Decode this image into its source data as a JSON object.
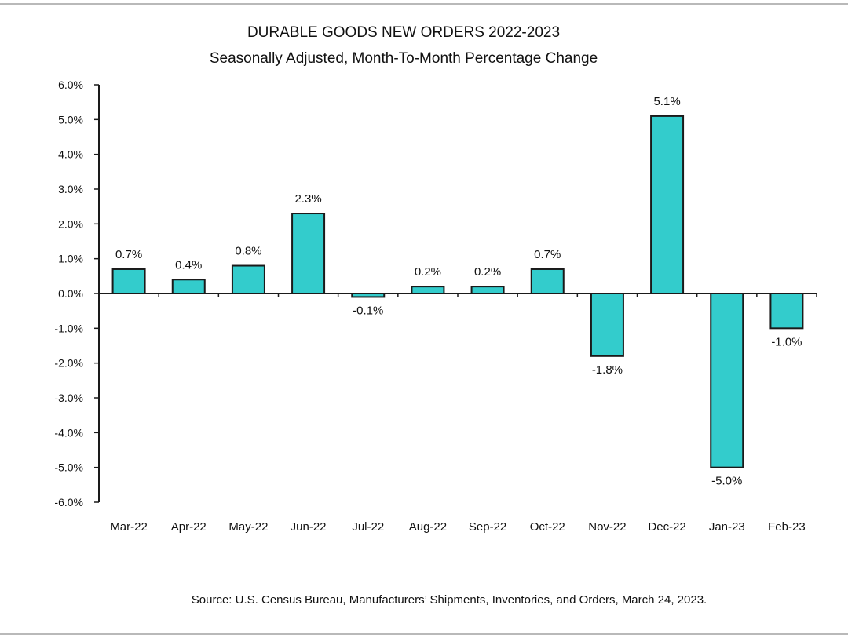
{
  "chart_data": {
    "type": "bar",
    "title": "DURABLE GOODS NEW ORDERS 2022-2023",
    "subtitle": "Seasonally Adjusted,  Month-To-Month Percentage Change",
    "categories": [
      "Mar-22",
      "Apr-22",
      "May-22",
      "Jun-22",
      "Jul-22",
      "Aug-22",
      "Sep-22",
      "Oct-22",
      "Nov-22",
      "Dec-22",
      "Jan-23",
      "Feb-23"
    ],
    "values": [
      0.7,
      0.4,
      0.8,
      2.3,
      -0.1,
      0.2,
      0.2,
      0.7,
      -1.8,
      5.1,
      -5.0,
      -1.0
    ],
    "data_labels": [
      "0.7%",
      "0.4%",
      "0.8%",
      "2.3%",
      "-0.1%",
      "0.2%",
      "0.2%",
      "0.7%",
      "-1.8%",
      "5.1%",
      "-5.0%",
      "-1.0%"
    ],
    "y_ticks": [
      6,
      5,
      4,
      3,
      2,
      1,
      0,
      -1,
      -2,
      -3,
      -4,
      -5,
      -6
    ],
    "y_tick_labels": [
      "6.0%",
      "5.0%",
      "4.0%",
      "3.0%",
      "2.0%",
      "1.0%",
      "0.0%",
      "-1.0%",
      "-2.0%",
      "-3.0%",
      "-4.0%",
      "-5.0%",
      "-6.0%"
    ],
    "ylim": [
      -6,
      6
    ],
    "xlabel": "",
    "ylabel": "",
    "grid": false,
    "legend": "none",
    "bar_color": "#33cccc",
    "bar_outline_color": "#1a1a1a",
    "source": "Source: U.S. Census Bureau, Manufacturers’ Shipments, Inventories, and Orders, March 24, 2023."
  }
}
